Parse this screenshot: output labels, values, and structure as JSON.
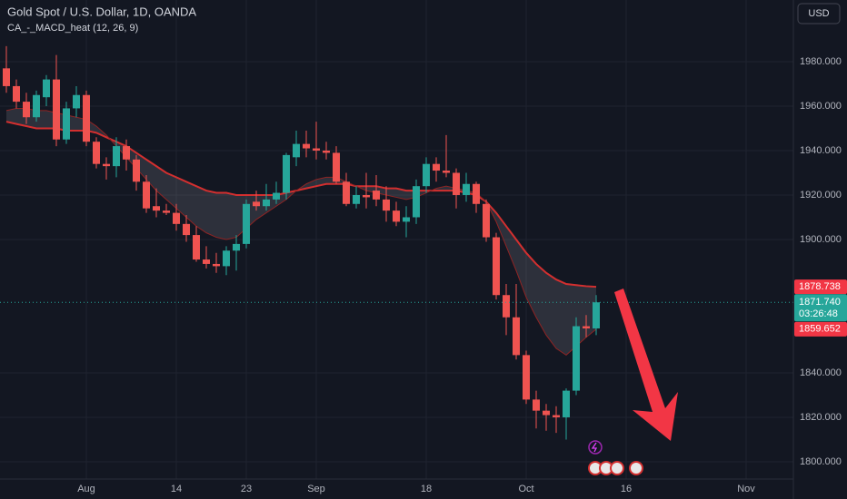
{
  "chart_data": {
    "type": "candlestick",
    "title": "Gold Spot / U.S. Dollar, 1D, OANDA",
    "indicator": "CA_-_MACD_heat (12, 26, 9)",
    "currency": "USD",
    "categories": [
      null,
      null,
      null,
      null,
      null,
      null,
      null,
      null,
      "Aug",
      null,
      null,
      null,
      null,
      null,
      null,
      null,
      null,
      "14",
      null,
      null,
      null,
      null,
      null,
      null,
      "23",
      null,
      null,
      null,
      null,
      null,
      null,
      "Sep",
      null,
      null,
      null,
      null,
      null,
      null,
      null,
      null,
      null,
      null,
      "18",
      null,
      null,
      null,
      null,
      null,
      null,
      null,
      null,
      null,
      "Oct",
      null,
      null,
      null,
      null,
      null,
      null,
      null,
      null,
      null,
      "16",
      null,
      null,
      null,
      null,
      null,
      null,
      null,
      null,
      null,
      null,
      null,
      "Nov"
    ],
    "open": [
      1977,
      1969,
      1962,
      1955,
      1964,
      1972,
      1945,
      1959,
      1965,
      1944,
      1934,
      1933,
      1942,
      1936,
      1926,
      1915,
      1913,
      1912,
      1907,
      1902,
      1891,
      1889,
      1888,
      1895,
      1898,
      1917,
      1915,
      1918,
      1921,
      1937,
      1943,
      1941,
      1940,
      1939,
      1926,
      1916,
      1920,
      1922,
      1918,
      1913,
      1908,
      1910,
      1924,
      1934,
      1931,
      1930,
      1920,
      1925,
      1916,
      1901,
      1875,
      1865,
      1848,
      1828,
      1823,
      1821,
      1820,
      1832,
      1861,
      1860,
      null,
      null,
      null,
      null,
      null,
      null,
      null,
      null,
      null,
      null,
      null,
      null,
      null,
      null,
      null
    ],
    "high": [
      1987,
      1972,
      1966,
      1967,
      1974,
      1983,
      1962,
      1969,
      1967,
      1946,
      1937,
      1946,
      1945,
      1938,
      1929,
      1923,
      1916,
      1916,
      1911,
      1906,
      1897,
      1894,
      1897,
      1902,
      1918,
      1922,
      1925,
      1926,
      1939,
      1949,
      1949,
      1953,
      1944,
      1942,
      1930,
      1924,
      1930,
      1929,
      1924,
      1917,
      1915,
      1927,
      1937,
      1937,
      1947,
      1932,
      1930,
      1926,
      1918,
      1903,
      1880,
      1880,
      1850,
      1832,
      1826,
      1825,
      1833,
      1865,
      1866,
      1875,
      null,
      null,
      null,
      null,
      null,
      null,
      null,
      null,
      null,
      null,
      null,
      null,
      null,
      null,
      null
    ],
    "low": [
      1966,
      1959,
      1952,
      1953,
      1960,
      1942,
      1943,
      1955,
      1942,
      1932,
      1927,
      1928,
      1931,
      1922,
      1912,
      1910,
      1911,
      1904,
      1899,
      1890,
      1887,
      1885,
      1884,
      1886,
      1896,
      1913,
      1913,
      1916,
      1918,
      1933,
      1937,
      1936,
      1936,
      1925,
      1915,
      1914,
      1914,
      1915,
      1908,
      1906,
      1901,
      1907,
      1921,
      1926,
      1928,
      1914,
      1917,
      1912,
      1899,
      1873,
      1857,
      1846,
      1826,
      1815,
      1814,
      1813,
      1810,
      1830,
      1856,
      1857,
      null,
      null,
      null,
      null,
      null,
      null,
      null,
      null,
      null,
      null,
      null,
      null,
      null,
      null,
      null
    ],
    "close": [
      1969,
      1962,
      1955,
      1965,
      1972,
      1945,
      1959,
      1965,
      1944,
      1934,
      1933,
      1942,
      1936,
      1926,
      1914,
      1913,
      1912,
      1907,
      1902,
      1891,
      1889,
      1888,
      1895,
      1898,
      1916,
      1915,
      1918,
      1921,
      1938,
      1943,
      1941,
      1940,
      1939,
      1926,
      1916,
      1920,
      1919,
      1918,
      1913,
      1908,
      1910,
      1924,
      1934,
      1931,
      1930,
      1920,
      1925,
      1916,
      1901,
      1875,
      1865,
      1848,
      1828,
      1823,
      1821,
      1820,
      1832,
      1861,
      1860,
      1871.74,
      null,
      null,
      null,
      null,
      null,
      null,
      null,
      null,
      null,
      null,
      null,
      null,
      null,
      null,
      null
    ],
    "last_close_label": "1871.740",
    "countdown": "03:26:48",
    "up_color": "#26a69a",
    "down_color": "#ef5350",
    "overlays": [
      {
        "color": "#d32f2f",
        "last_value_label": "1878.738",
        "values": [
          1953,
          1952,
          1951,
          1950,
          1950,
          1950,
          1949,
          1949,
          1949,
          1948,
          1946,
          1944,
          1942,
          1939,
          1936,
          1933,
          1930,
          1928,
          1926,
          1924,
          1922,
          1921,
          1921,
          1920,
          1920,
          1920,
          1920,
          1920,
          1921,
          1922,
          1923,
          1924,
          1925,
          1925,
          1925,
          1924,
          1924,
          1924,
          1923,
          1923,
          1922,
          1922,
          1922,
          1922,
          1922,
          1922,
          1921,
          1920,
          1917,
          1912,
          1906,
          1900,
          1894,
          1889,
          1885,
          1882,
          1880,
          1879.5,
          1879,
          1878.738,
          null,
          null,
          null,
          null,
          null,
          null,
          null,
          null,
          null,
          null,
          null,
          null,
          null,
          null,
          null
        ]
      },
      {
        "color": "#8e2424",
        "last_value_label": "1859.652",
        "values": [
          1958,
          1959,
          1959,
          1958,
          1958,
          1957,
          1956,
          1955,
          1954,
          1951,
          1947,
          1942,
          1937,
          1932,
          1927,
          1922,
          1918,
          1914,
          1910,
          1906,
          1903,
          1901,
          1900,
          1901,
          1905,
          1909,
          1912,
          1915,
          1918,
          1922,
          1925,
          1927,
          1928,
          1928,
          1926,
          1924,
          1922,
          1921,
          1920,
          1919,
          1918,
          1919,
          1921,
          1923,
          1924,
          1923,
          1922,
          1921,
          1917,
          1908,
          1897,
          1886,
          1874,
          1865,
          1857,
          1851,
          1848,
          1852,
          1856,
          1859.652,
          null,
          null,
          null,
          null,
          null,
          null,
          null,
          null,
          null,
          null,
          null,
          null,
          null,
          null,
          null
        ]
      }
    ],
    "ylim": [
      1792.24,
      2007.75
    ],
    "yticks": [
      {
        "value": 1800,
        "label": "1800.000"
      },
      {
        "value": 1820,
        "label": "1820.000"
      },
      {
        "value": 1840,
        "label": "1840.000"
      },
      {
        "value": 1900,
        "label": "1900.000"
      },
      {
        "value": 1920,
        "label": "1920.000"
      },
      {
        "value": 1940,
        "label": "1940.000"
      },
      {
        "value": 1960,
        "label": "1960.000"
      },
      {
        "value": 1980,
        "label": "1980.000"
      }
    ],
    "grid": true
  }
}
